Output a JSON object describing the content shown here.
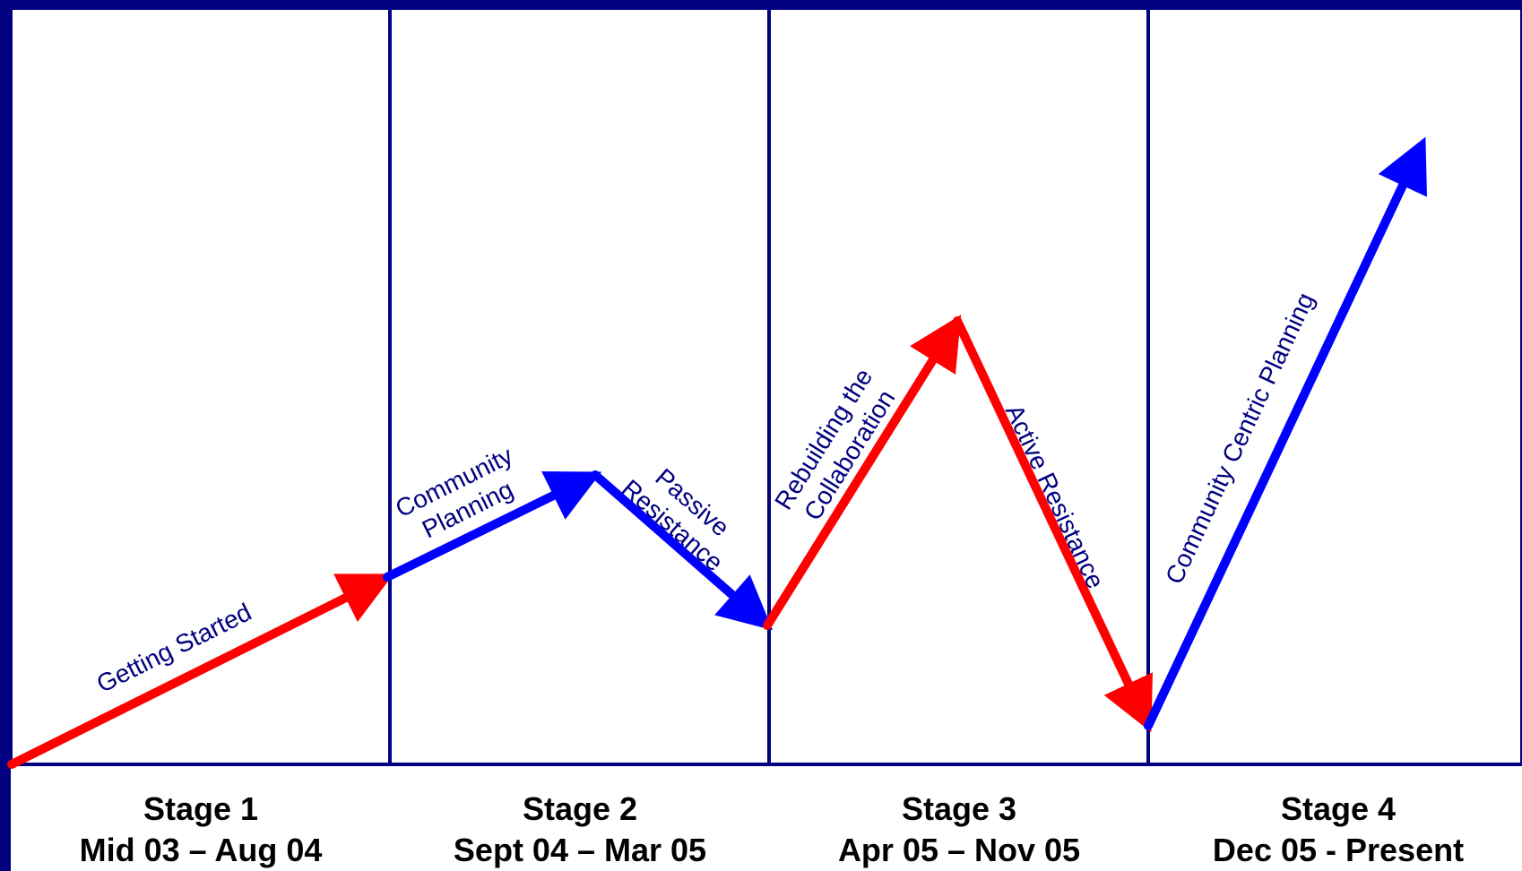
{
  "colors": {
    "background": "#ffffff",
    "border": "#000080",
    "grid": "#000080",
    "label_text": "#000080",
    "red_arrow": "#ff0000",
    "blue_arrow": "#0000ff",
    "stage_text": "#000000"
  },
  "stages": [
    {
      "title": "Stage 1",
      "dates": "Mid 03 – Aug 04"
    },
    {
      "title": "Stage 2",
      "dates": "Sept 04 – Mar 05"
    },
    {
      "title": "Stage 3",
      "dates": "Apr 05 – Nov 05"
    },
    {
      "title": "Stage 4",
      "dates": "Dec 05 - Present"
    }
  ],
  "segments": [
    {
      "id": "getting-started",
      "color": "red",
      "lines": [
        "Getting Started"
      ]
    },
    {
      "id": "community-planning",
      "color": "blue",
      "lines": [
        "Community",
        "Planning"
      ]
    },
    {
      "id": "passive-resistance",
      "color": "blue",
      "lines": [
        "Passive",
        "Resistance"
      ]
    },
    {
      "id": "rebuilding-collaboration",
      "color": "red",
      "lines": [
        "Rebuilding the",
        "Collaboration"
      ]
    },
    {
      "id": "active-resistance",
      "color": "red",
      "lines": [
        "Active Resistance"
      ]
    },
    {
      "id": "community-centric-planning",
      "color": "blue",
      "lines": [
        "Community Centric Planning"
      ]
    }
  ]
}
